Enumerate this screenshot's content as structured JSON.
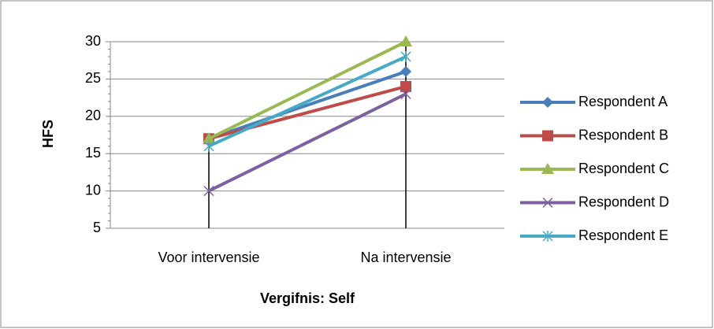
{
  "chart_data": {
    "type": "line",
    "x_label": "Vergifnis: Self",
    "y_label": "HFS",
    "categories": [
      "Voor intervensie",
      "Na intervensie"
    ],
    "series": [
      {
        "name": "Respondent A",
        "color": "#4a7ebb",
        "marker": "diamond",
        "values": [
          17,
          26
        ]
      },
      {
        "name": "Respondent B",
        "color": "#be4b48",
        "marker": "square",
        "values": [
          17,
          24
        ]
      },
      {
        "name": "Respondent C",
        "color": "#98b954",
        "marker": "triangle",
        "values": [
          17,
          30
        ]
      },
      {
        "name": "Respondent D",
        "color": "#7d60a0",
        "marker": "x",
        "values": [
          10,
          23
        ]
      },
      {
        "name": "Respondent E",
        "color": "#46aac5",
        "marker": "star",
        "values": [
          16,
          28
        ]
      }
    ],
    "ylim": [
      5,
      30
    ],
    "yticks": [
      5,
      10,
      15,
      20,
      25,
      30
    ],
    "grid": true,
    "legend": "right"
  }
}
